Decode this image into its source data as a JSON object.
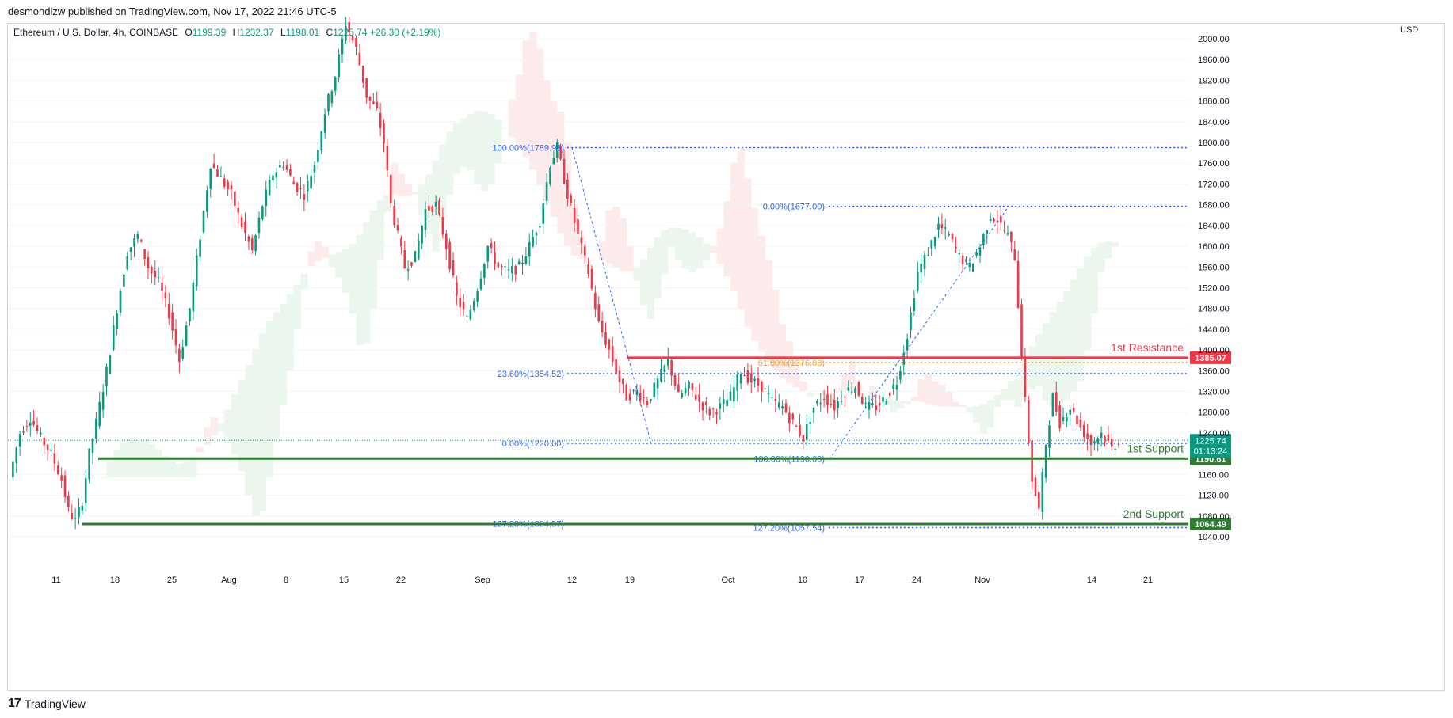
{
  "header": {
    "published": "desmondlzw published on TradingView.com, Nov 17, 2022 21:46 UTC-5"
  },
  "legend": {
    "symbol": "Ethereum / U.S. Dollar, 4h, COINBASE",
    "o_key": "O",
    "o": "1199.39",
    "h_key": "H",
    "h": "1232.37",
    "l_key": "L",
    "l": "1198.01",
    "c_key": "C",
    "c": "1225.74",
    "change": "+26.30 (+2.19%)"
  },
  "footer": {
    "brand": "TradingView"
  },
  "colors": {
    "up": "#089981",
    "down": "#f23645",
    "fib": "#2962ff",
    "resistance": "#f23645",
    "support": "#2e7d32",
    "golden": "#f5a623"
  },
  "chart_data": {
    "type": "candlestick",
    "currency": "USD",
    "ylim": [
      1020,
      2030
    ],
    "yticks": [
      "2000.00",
      "1960.00",
      "1920.00",
      "1880.00",
      "1840.00",
      "1800.00",
      "1760.00",
      "1720.00",
      "1680.00",
      "1640.00",
      "1600.00",
      "1560.00",
      "1520.00",
      "1480.00",
      "1440.00",
      "1400.00",
      "1360.00",
      "1320.00",
      "1280.00",
      "1240.00",
      "1160.00",
      "1120.00",
      "1080.00",
      "1040.00"
    ],
    "xtick_labels": [
      "11",
      "18",
      "25",
      "Aug",
      "8",
      "15",
      "22",
      "Sep",
      "12",
      "19",
      "Oct",
      "10",
      "17",
      "24",
      "Nov",
      "14",
      "21"
    ],
    "last_price": "1225.74",
    "countdown": "01:13:24",
    "price_path": [
      [
        0,
        1155
      ],
      [
        3,
        1240
      ],
      [
        6,
        1270
      ],
      [
        9,
        1230
      ],
      [
        12,
        1200
      ],
      [
        15,
        1150
      ],
      [
        17,
        1090
      ],
      [
        19,
        1070
      ],
      [
        21,
        1110
      ],
      [
        23,
        1200
      ],
      [
        25,
        1260
      ],
      [
        28,
        1360
      ],
      [
        31,
        1480
      ],
      [
        34,
        1590
      ],
      [
        37,
        1620
      ],
      [
        40,
        1560
      ],
      [
        43,
        1530
      ],
      [
        46,
        1470
      ],
      [
        49,
        1380
      ],
      [
        52,
        1480
      ],
      [
        55,
        1620
      ],
      [
        58,
        1760
      ],
      [
        61,
        1730
      ],
      [
        64,
        1700
      ],
      [
        67,
        1640
      ],
      [
        70,
        1590
      ],
      [
        73,
        1680
      ],
      [
        76,
        1740
      ],
      [
        79,
        1760
      ],
      [
        82,
        1720
      ],
      [
        85,
        1700
      ],
      [
        88,
        1760
      ],
      [
        91,
        1860
      ],
      [
        94,
        1930
      ],
      [
        97,
        2030
      ],
      [
        100,
        1980
      ],
      [
        103,
        1890
      ],
      [
        106,
        1860
      ],
      [
        108,
        1800
      ],
      [
        110,
        1680
      ],
      [
        112,
        1620
      ],
      [
        114,
        1560
      ],
      [
        117,
        1580
      ],
      [
        120,
        1670
      ],
      [
        123,
        1680
      ],
      [
        126,
        1600
      ],
      [
        129,
        1500
      ],
      [
        132,
        1460
      ],
      [
        135,
        1520
      ],
      [
        138,
        1600
      ],
      [
        141,
        1560
      ],
      [
        144,
        1550
      ],
      [
        147,
        1560
      ],
      [
        150,
        1600
      ],
      [
        153,
        1650
      ],
      [
        156,
        1760
      ],
      [
        158,
        1790
      ],
      [
        161,
        1700
      ],
      [
        164,
        1620
      ],
      [
        167,
        1550
      ],
      [
        170,
        1450
      ],
      [
        173,
        1400
      ],
      [
        176,
        1340
      ],
      [
        178,
        1310
      ],
      [
        181,
        1320
      ],
      [
        184,
        1300
      ],
      [
        187,
        1340
      ],
      [
        190,
        1380
      ],
      [
        193,
        1310
      ],
      [
        196,
        1330
      ],
      [
        199,
        1300
      ],
      [
        202,
        1280
      ],
      [
        205,
        1290
      ],
      [
        208,
        1310
      ],
      [
        211,
        1360
      ],
      [
        214,
        1340
      ],
      [
        217,
        1330
      ],
      [
        220,
        1300
      ],
      [
        223,
        1290
      ],
      [
        226,
        1260
      ],
      [
        229,
        1230
      ],
      [
        232,
        1290
      ],
      [
        235,
        1310
      ],
      [
        238,
        1290
      ],
      [
        241,
        1320
      ],
      [
        244,
        1330
      ],
      [
        247,
        1290
      ],
      [
        250,
        1290
      ],
      [
        253,
        1310
      ],
      [
        256,
        1340
      ],
      [
        259,
        1430
      ],
      [
        262,
        1550
      ],
      [
        265,
        1590
      ],
      [
        268,
        1640
      ],
      [
        271,
        1620
      ],
      [
        274,
        1580
      ],
      [
        277,
        1560
      ],
      [
        280,
        1600
      ],
      [
        283,
        1660
      ],
      [
        285,
        1650
      ],
      [
        288,
        1620
      ],
      [
        290,
        1580
      ],
      [
        293,
        1300
      ],
      [
        295,
        1150
      ],
      [
        297,
        1090
      ],
      [
        299,
        1220
      ],
      [
        301,
        1310
      ],
      [
        303,
        1260
      ],
      [
        306,
        1290
      ],
      [
        309,
        1250
      ],
      [
        312,
        1220
      ],
      [
        315,
        1240
      ],
      [
        318,
        1210
      ],
      [
        320,
        1225
      ]
    ],
    "fib_levels": [
      {
        "label": "100.00%(1789.98)",
        "value": 1789.98
      },
      {
        "label": "0.00%(1677.00)",
        "value": 1677.0
      },
      {
        "label": "61.80%(1376.03)",
        "value": 1376.03
      },
      {
        "label": "23.60%(1354.52)",
        "value": 1354.52
      },
      {
        "label": "0.00%(1220.00)",
        "value": 1220.0
      },
      {
        "label": "100.00%(1190.00)",
        "value": 1190.0
      },
      {
        "label": "127.20%(1064.97)",
        "value": 1064.97
      },
      {
        "label": "127.20%(1057.54)",
        "value": 1057.54
      }
    ],
    "horizontal_lines": [
      {
        "name": "1st Resistance",
        "value": 1385.07,
        "price_label": "1385.07"
      },
      {
        "name": "1st Support",
        "value": 1190.61,
        "price_label": "1190.61"
      },
      {
        "name": "2nd Support",
        "value": 1064.49,
        "price_label": "1064.49"
      }
    ]
  }
}
